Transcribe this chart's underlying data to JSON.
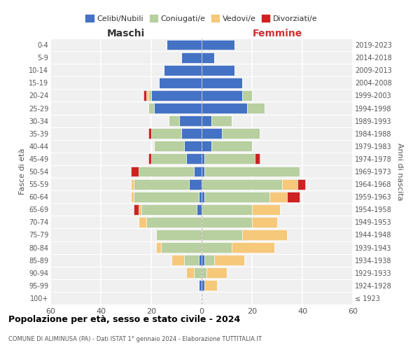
{
  "age_groups": [
    "100+",
    "95-99",
    "90-94",
    "85-89",
    "80-84",
    "75-79",
    "70-74",
    "65-69",
    "60-64",
    "55-59",
    "50-54",
    "45-49",
    "40-44",
    "35-39",
    "30-34",
    "25-29",
    "20-24",
    "15-19",
    "10-14",
    "5-9",
    "0-4"
  ],
  "birth_years": [
    "≤ 1923",
    "1924-1928",
    "1929-1933",
    "1934-1938",
    "1939-1943",
    "1944-1948",
    "1949-1953",
    "1954-1958",
    "1959-1963",
    "1964-1968",
    "1969-1973",
    "1974-1978",
    "1979-1983",
    "1984-1988",
    "1989-1993",
    "1994-1998",
    "1999-2003",
    "2004-2008",
    "2009-2013",
    "2014-2018",
    "2019-2023"
  ],
  "maschi": {
    "celibi": [
      0,
      1,
      0,
      1,
      0,
      0,
      0,
      2,
      1,
      5,
      3,
      6,
      7,
      8,
      9,
      19,
      20,
      17,
      15,
      8,
      14
    ],
    "coniugati": [
      0,
      0,
      3,
      6,
      16,
      18,
      22,
      22,
      26,
      22,
      22,
      14,
      12,
      12,
      4,
      2,
      1,
      0,
      0,
      0,
      0
    ],
    "vedovi": [
      0,
      0,
      3,
      5,
      2,
      0,
      3,
      1,
      1,
      1,
      0,
      0,
      0,
      0,
      0,
      0,
      1,
      0,
      0,
      0,
      0
    ],
    "divorziati": [
      0,
      0,
      0,
      0,
      0,
      0,
      0,
      2,
      0,
      0,
      3,
      1,
      0,
      1,
      0,
      0,
      1,
      0,
      0,
      0,
      0
    ]
  },
  "femmine": {
    "nubili": [
      0,
      1,
      0,
      1,
      0,
      0,
      0,
      0,
      1,
      0,
      1,
      1,
      4,
      8,
      4,
      18,
      16,
      16,
      13,
      5,
      13
    ],
    "coniugate": [
      0,
      0,
      2,
      4,
      12,
      16,
      20,
      20,
      26,
      32,
      38,
      20,
      16,
      15,
      8,
      7,
      4,
      0,
      0,
      0,
      0
    ],
    "vedove": [
      0,
      5,
      8,
      12,
      17,
      18,
      10,
      11,
      7,
      6,
      0,
      0,
      0,
      0,
      0,
      0,
      0,
      0,
      0,
      0,
      0
    ],
    "divorziate": [
      0,
      0,
      0,
      0,
      0,
      0,
      0,
      0,
      5,
      3,
      0,
      2,
      0,
      0,
      0,
      0,
      0,
      0,
      0,
      0,
      0
    ]
  },
  "colors": {
    "celibi": "#4472c4",
    "coniugati": "#b8cfa0",
    "vedovi": "#f5c87a",
    "divorziati": "#cc2222"
  },
  "title": "Popolazione per età, sesso e stato civile - 2024",
  "subtitle": "COMUNE DI ALIMINUSA (PA) - Dati ISTAT 1° gennaio 2024 - Elaborazione TUTTITALIA.IT",
  "xlabel_left": "Maschi",
  "xlabel_right": "Femmine",
  "ylabel_left": "Fasce di età",
  "ylabel_right": "Anni di nascita",
  "xlim": 60,
  "bg_color": "#f0f0f0",
  "legend_labels": [
    "Celibi/Nubili",
    "Coniugati/e",
    "Vedovi/e",
    "Divorziati/e"
  ]
}
